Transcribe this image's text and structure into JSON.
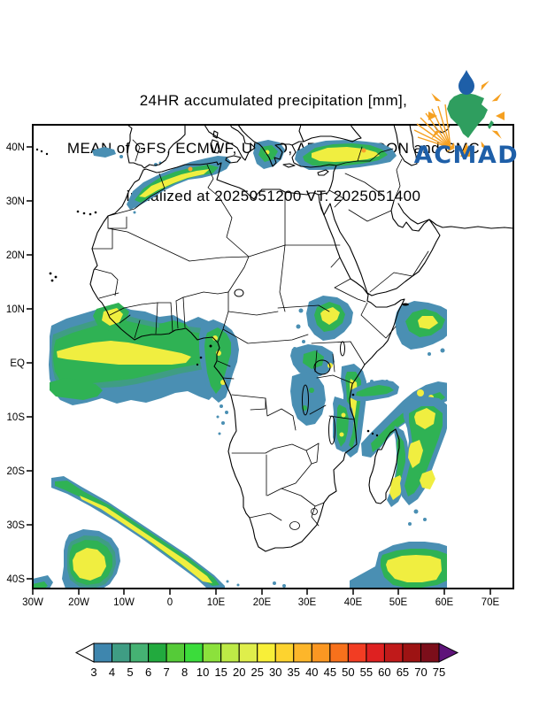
{
  "title": {
    "line1": "24HR accumulated precipitation [mm],",
    "line2": "MEAN of GFS, ECMWF, UKMO, ARPEGE, ICON and CMC",
    "line3": "initialized at 2025051200 VT: 2025051400"
  },
  "logo": {
    "name": "ACMAD",
    "accent_blue": "#1e5fa8",
    "accent_green": "#2f9e5f",
    "accent_orange": "#f5a021"
  },
  "map": {
    "lat_labels": [
      "40N",
      "30N",
      "20N",
      "10N",
      "EQ",
      "10S",
      "20S",
      "30S",
      "40S"
    ],
    "lon_labels": [
      "30W",
      "20W",
      "10W",
      "0",
      "10E",
      "20E",
      "30E",
      "40E",
      "50E",
      "60E",
      "70E"
    ],
    "frame_color": "#000000",
    "precip_colors": {
      "light_rain_cyan": "#4a8fb3",
      "teal": "#3f9d84",
      "green": "#2fb254",
      "yellow_green": "#9ae23c",
      "yellow": "#f0ee40",
      "orange": "#f8a02a"
    }
  },
  "colorbar": {
    "values": [
      "3",
      "4",
      "5",
      "6",
      "7",
      "8",
      "10",
      "15",
      "20",
      "25",
      "30",
      "35",
      "40",
      "45",
      "50",
      "55",
      "60",
      "65",
      "70",
      "75"
    ],
    "segment_colors": [
      "#3e86ae",
      "#3f9d84",
      "#45b273",
      "#22aa3e",
      "#55cb38",
      "#3bdc3b",
      "#8ce13c",
      "#bdea46",
      "#dfee4b",
      "#f8ef38",
      "#fdd32f",
      "#fdb62a",
      "#fb9722",
      "#f7711c",
      "#f23d23",
      "#de2121",
      "#c01a1a",
      "#9d1313",
      "#7c0e1a"
    ],
    "underflow_arrow_color": "#ffffff",
    "overflow_arrow_color": "#5e1379"
  }
}
